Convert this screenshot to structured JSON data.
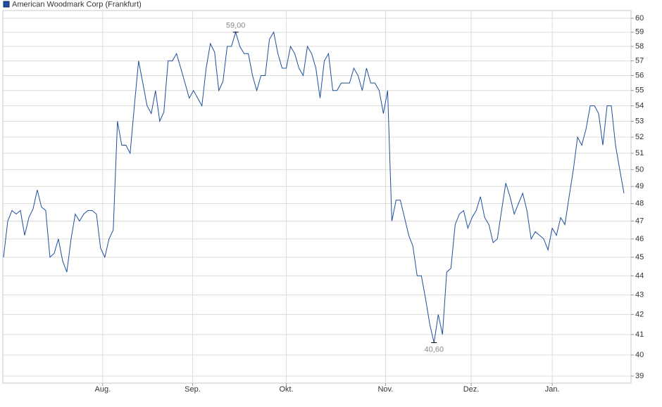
{
  "chart_data": {
    "type": "line",
    "log_scale": true,
    "grid": true,
    "series": [
      {
        "name": "American Woodmark Corp (Frankfurt)",
        "color": "#1f4e9c",
        "values": [
          45,
          47,
          47.6,
          47.4,
          47.6,
          46.2,
          47.2,
          47.7,
          48.8,
          47.8,
          47.6,
          45,
          45.2,
          46,
          44.8,
          44.2,
          46,
          47.4,
          47,
          47.4,
          47.6,
          47.6,
          47.4,
          45.5,
          45,
          46,
          46.5,
          53,
          51.5,
          51.5,
          51,
          54,
          57,
          55.5,
          54,
          53.5,
          55,
          53,
          53.6,
          57,
          57,
          57.5,
          56.5,
          55.5,
          54.5,
          55,
          54.5,
          54,
          56.5,
          58.2,
          57.6,
          55,
          55.6,
          58,
          58,
          59,
          58,
          57.5,
          57.5,
          56,
          55,
          56,
          56,
          58.5,
          59,
          57.5,
          56.5,
          56.5,
          58,
          57.5,
          56.5,
          56,
          58,
          57.5,
          56.5,
          54.5,
          57,
          57.5,
          55,
          55,
          55.5,
          55.5,
          55.5,
          56.5,
          56,
          55,
          56.5,
          55.5,
          55.5,
          55,
          53.5,
          55,
          47,
          48.2,
          48.2,
          47.2,
          46.2,
          45.6,
          44,
          44,
          42.8,
          41.5,
          40.6,
          42,
          41,
          44.2,
          44.4,
          46.8,
          47.4,
          47.6,
          46.6,
          47.2,
          47.6,
          48.4,
          47.2,
          46.8,
          45.8,
          46,
          47.6,
          49.2,
          48.4,
          47.4,
          48,
          48.6,
          47.6,
          46,
          46.4,
          46.2,
          46,
          45.4,
          46.6,
          46.2,
          47.2,
          46.8,
          48.4,
          50,
          52,
          51.5,
          52.5,
          54,
          54,
          53.5,
          51.5,
          54,
          54,
          51.5,
          50,
          48.6
        ]
      }
    ],
    "high": {
      "value": 59,
      "label": "59,00"
    },
    "low": {
      "value": 40.6,
      "label": "40,60"
    },
    "xlim": [
      0,
      148
    ],
    "xticks": [
      {
        "value": 23.5,
        "label": "Aug."
      },
      {
        "value": 44.8,
        "label": "Sep."
      },
      {
        "value": 67,
        "label": "Okt."
      },
      {
        "value": 90.5,
        "label": "Nov."
      },
      {
        "value": 110.8,
        "label": "Dez."
      },
      {
        "value": 130,
        "label": "Jan."
      }
    ],
    "ylim": [
      38.67,
      60.56
    ],
    "yticks": [
      39,
      40,
      41,
      42,
      43,
      44,
      45,
      46,
      47,
      48,
      49,
      50,
      51,
      52,
      53,
      54,
      55,
      56,
      57,
      58,
      59,
      60
    ]
  }
}
